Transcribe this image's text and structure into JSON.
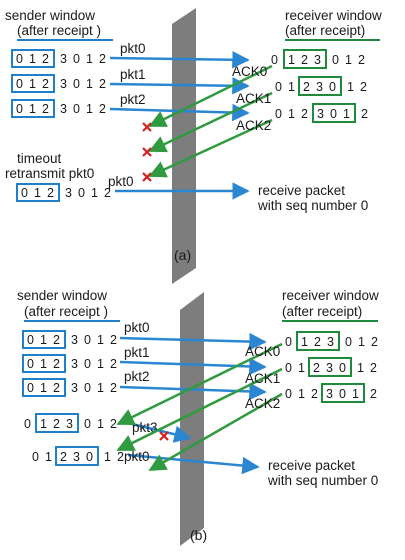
{
  "colors": {
    "sender_box": "#1f7fc9",
    "receiver_box": "#1e8a3c",
    "data_arrow": "#2a86d0",
    "ack_arrow": "#2f9a3f",
    "loss_mark": "#d62020",
    "channel": "#7d7d7d"
  },
  "panel_a": {
    "caption": "(a)",
    "sender_title_1": "sender window",
    "sender_title_2": "(after receipt )",
    "receiver_title_1": "receiver window",
    "receiver_title_2": "(after receipt)",
    "sender_rows": [
      {
        "seq": [
          "0",
          "1",
          "2",
          "3",
          "0",
          "1",
          "2"
        ]
      },
      {
        "seq": [
          "0",
          "1",
          "2",
          "3",
          "0",
          "1",
          "2"
        ]
      },
      {
        "seq": [
          "0",
          "1",
          "2",
          "3",
          "0",
          "1",
          "2"
        ]
      },
      {
        "seq": [
          "0",
          "1",
          "2",
          "3",
          "0",
          "1",
          "2"
        ]
      }
    ],
    "receiver_rows": [
      {
        "seq": [
          "0",
          "1",
          "2",
          "3",
          "0",
          "1",
          "2"
        ]
      },
      {
        "seq": [
          "0",
          "1",
          "2",
          "3",
          "0",
          "1",
          "2"
        ]
      },
      {
        "seq": [
          "0",
          "1",
          "2",
          "3",
          "0",
          "1",
          "2"
        ]
      }
    ],
    "packets": [
      "pkt0",
      "pkt1",
      "pkt2",
      "pkt0"
    ],
    "acks": [
      "ACK0",
      "ACK1",
      "ACK2"
    ],
    "timeout_1": "timeout",
    "timeout_2": "retransmit pkt0",
    "receive_1": "receive packet",
    "receive_2": "with seq number 0"
  },
  "panel_b": {
    "caption": "(b)",
    "sender_title_1": "sender window",
    "sender_title_2": "(after receipt )",
    "receiver_title_1": "receiver window",
    "receiver_title_2": "(after receipt)",
    "sender_rows": [
      {
        "seq": [
          "0",
          "1",
          "2",
          "3",
          "0",
          "1",
          "2"
        ]
      },
      {
        "seq": [
          "0",
          "1",
          "2",
          "3",
          "0",
          "1",
          "2"
        ]
      },
      {
        "seq": [
          "0",
          "1",
          "2",
          "3",
          "0",
          "1",
          "2"
        ]
      },
      {
        "seq": [
          "0",
          "1",
          "2",
          "3",
          "0",
          "1",
          "2"
        ]
      },
      {
        "seq": [
          "0",
          "1",
          "2",
          "3",
          "0",
          "1",
          "2"
        ]
      }
    ],
    "receiver_rows": [
      {
        "seq": [
          "0",
          "1",
          "2",
          "3",
          "0",
          "1",
          "2"
        ]
      },
      {
        "seq": [
          "0",
          "1",
          "2",
          "3",
          "0",
          "1",
          "2"
        ]
      },
      {
        "seq": [
          "0",
          "1",
          "2",
          "3",
          "0",
          "1",
          "2"
        ]
      }
    ],
    "packets": [
      "pkt0",
      "pkt1",
      "pkt2",
      "pkt3",
      "pkt0"
    ],
    "acks": [
      "ACK0",
      "ACK1",
      "ACK2"
    ],
    "receive_1": "receive packet",
    "receive_2": "with seq number 0"
  }
}
